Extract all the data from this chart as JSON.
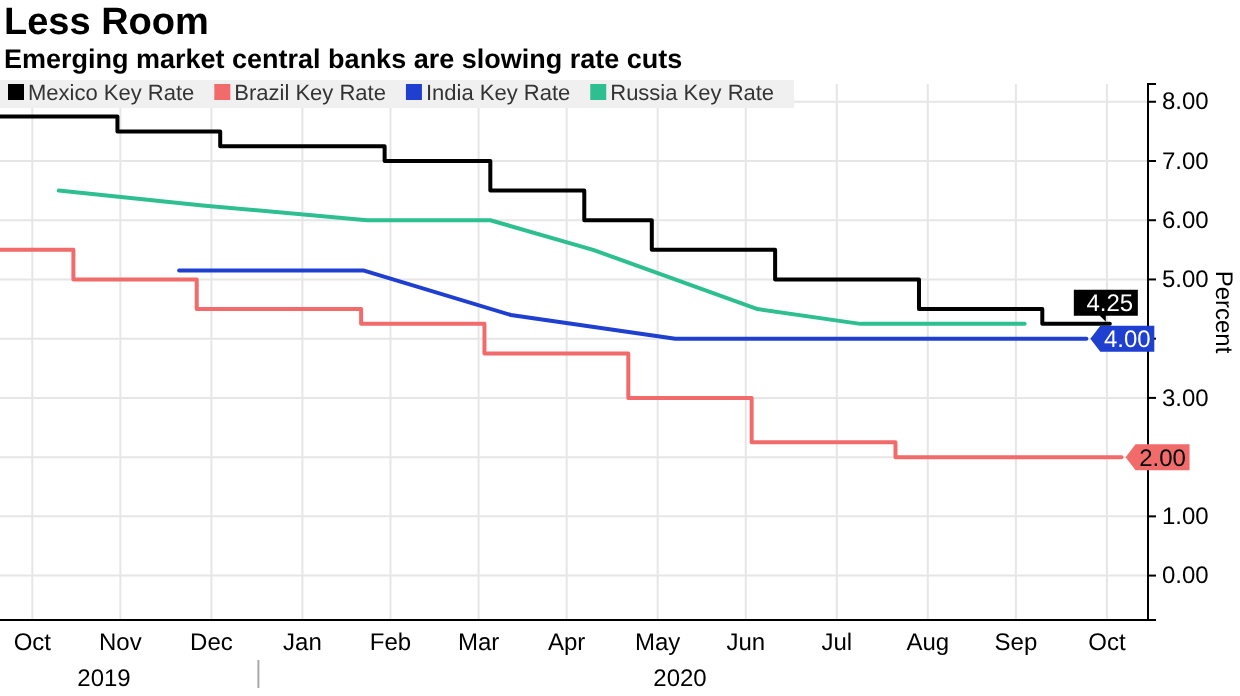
{
  "chart_data": {
    "type": "line",
    "title": "Less Room",
    "subtitle": "Emerging market central banks are slowing rate cuts",
    "ylabel": "Percent",
    "xlim": [
      "2019-10-05",
      "2020-10-30"
    ],
    "xticks": [
      {
        "value": "2019-10-16",
        "label": "Oct"
      },
      {
        "value": "2019-11-15",
        "label": "Nov"
      },
      {
        "value": "2019-12-16",
        "label": "Dec"
      },
      {
        "value": "2020-01-16",
        "label": "Jan"
      },
      {
        "value": "2020-02-15",
        "label": "Feb"
      },
      {
        "value": "2020-03-16",
        "label": "Mar"
      },
      {
        "value": "2020-04-15",
        "label": "Apr"
      },
      {
        "value": "2020-05-16",
        "label": "May"
      },
      {
        "value": "2020-06-15",
        "label": "Jun"
      },
      {
        "value": "2020-07-16",
        "label": "Jul"
      },
      {
        "value": "2020-08-16",
        "label": "Aug"
      },
      {
        "value": "2020-09-15",
        "label": "Sep"
      },
      {
        "value": "2020-10-16",
        "label": "Oct"
      }
    ],
    "ylim": [
      -0.75,
      8.3
    ],
    "yticks": [
      {
        "value": 0,
        "label": "0.00"
      },
      {
        "value": 1,
        "label": "1.00"
      },
      {
        "value": 2,
        "label": null
      },
      {
        "value": 3,
        "label": "3.00"
      },
      {
        "value": 4,
        "label": null
      },
      {
        "value": 5,
        "label": "5.00"
      },
      {
        "value": 6,
        "label": "6.00"
      },
      {
        "value": 7,
        "label": "7.00"
      },
      {
        "value": 8,
        "label": "8.00"
      }
    ],
    "grid": true,
    "legend": "top left",
    "annotations": [
      "2019",
      "2020"
    ],
    "series": [
      {
        "name": "Mexico Key Rate",
        "type": "step",
        "color": "#000000",
        "x": [
          "2019-10-05",
          "2019-11-14",
          "2019-12-19",
          "2020-02-13",
          "2020-03-20",
          "2020-04-21",
          "2020-05-14",
          "2020-06-25",
          "2020-08-13",
          "2020-09-24",
          "2020-10-17"
        ],
        "values": [
          7.75,
          7.5,
          7.25,
          7.0,
          6.5,
          6.0,
          5.5,
          5.0,
          4.5,
          4.25,
          4.25
        ],
        "value_labels": [
          null,
          null,
          null,
          null,
          null,
          null,
          null,
          null,
          null,
          null,
          "4.25"
        ]
      },
      {
        "name": "Brazil Key Rate",
        "type": "step",
        "color": "#f26b6b",
        "x": [
          "2019-10-05",
          "2019-10-30",
          "2019-12-11",
          "2020-02-05",
          "2020-03-18",
          "2020-05-06",
          "2020-06-17",
          "2020-08-05",
          "2020-10-21"
        ],
        "values": [
          5.5,
          5.0,
          4.5,
          4.25,
          3.75,
          3.0,
          2.25,
          2.0,
          2.0
        ],
        "value_labels": [
          null,
          null,
          null,
          null,
          null,
          null,
          null,
          null,
          "2.00"
        ]
      },
      {
        "name": "India Key Rate",
        "type": "line",
        "color": "#1f3fd0",
        "x": [
          "2019-12-05",
          "2020-02-06",
          "2020-03-27",
          "2020-05-22",
          "2020-10-09"
        ],
        "values": [
          5.15,
          5.15,
          4.4,
          4.0,
          4.0
        ],
        "value_labels": [
          null,
          null,
          null,
          null,
          "4.00"
        ]
      },
      {
        "name": "Russia Key Rate",
        "type": "line",
        "color": "#2ebf91",
        "x": [
          "2019-10-25",
          "2019-12-13",
          "2020-02-07",
          "2020-03-20",
          "2020-04-24",
          "2020-06-19",
          "2020-07-24",
          "2020-09-18"
        ],
        "values": [
          6.5,
          6.25,
          6.0,
          6.0,
          5.5,
          4.5,
          4.25,
          4.25
        ]
      }
    ]
  }
}
